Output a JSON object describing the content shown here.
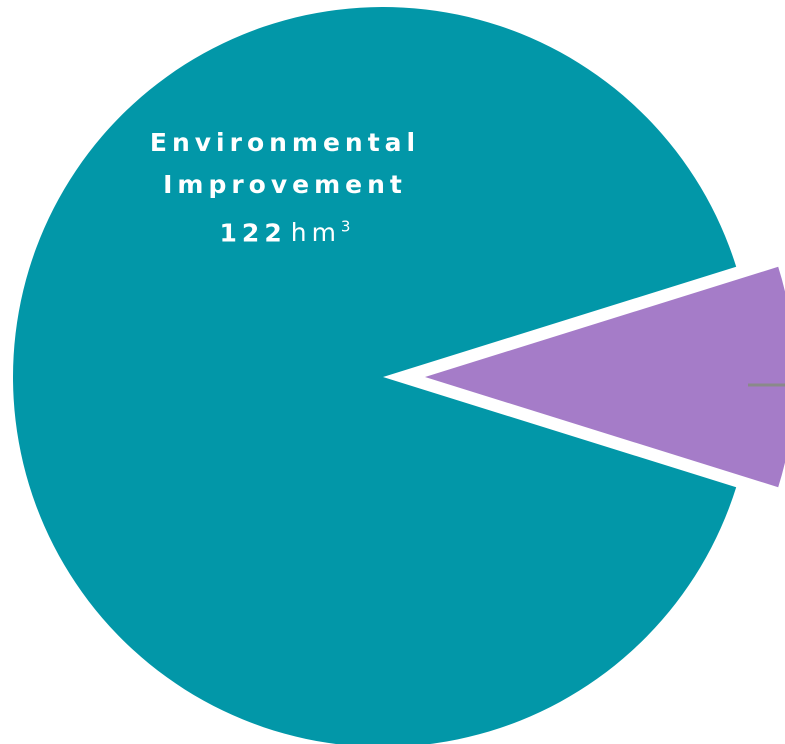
{
  "chart_data": {
    "type": "pie",
    "unit": "hm",
    "unit_exponent": "3",
    "slices": [
      {
        "name": "Environmental Improvement",
        "value": 122,
        "color": "#0297A8",
        "exploded": false,
        "label_visible": true
      },
      {
        "name": "",
        "value": 13,
        "color": "#A57CC8",
        "exploded": true,
        "label_visible": false
      }
    ]
  }
}
